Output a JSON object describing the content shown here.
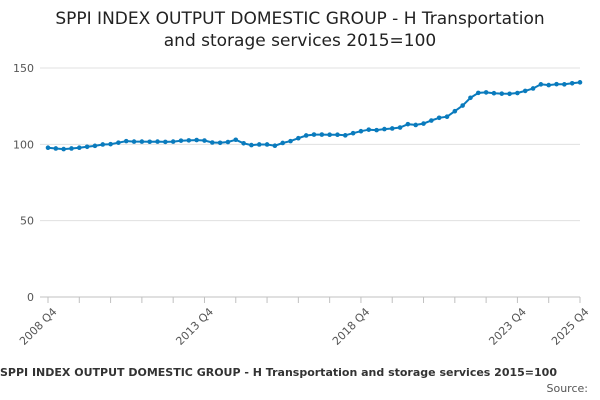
{
  "chart_data": {
    "type": "line",
    "title_lines": [
      "SPPI INDEX OUTPUT DOMESTIC GROUP - H Transportation",
      "and storage services 2015=100"
    ],
    "xlabel": "",
    "ylabel": "",
    "ylim": [
      0,
      150
    ],
    "yticks": [
      0,
      50,
      100,
      150
    ],
    "grid": true,
    "legend": "none",
    "x_tick_labels": [
      {
        "index": 0,
        "label": "2008 Q4"
      },
      {
        "index": 20,
        "label": "2013 Q4"
      },
      {
        "index": 40,
        "label": "2018 Q4"
      },
      {
        "index": 60,
        "label": "2023 Q4"
      },
      {
        "index": 68,
        "label": "2025 Q4"
      }
    ],
    "series": [
      {
        "color": "#0a7bbd",
        "values": [
          97.8,
          97.3,
          96.9,
          97.3,
          97.8,
          98.4,
          99.0,
          99.9,
          100.1,
          101.1,
          102.1,
          101.8,
          101.8,
          101.7,
          101.8,
          101.6,
          101.8,
          102.4,
          102.6,
          102.8,
          102.5,
          101.2,
          101.0,
          101.5,
          103.0,
          100.7,
          99.5,
          99.9,
          99.9,
          99.1,
          100.9,
          102.1,
          104.0,
          105.8,
          106.4,
          106.4,
          106.3,
          106.3,
          105.9,
          107.3,
          108.6,
          109.6,
          109.3,
          110.0,
          110.4,
          111.0,
          113.2,
          112.7,
          113.6,
          115.6,
          117.4,
          118.1,
          121.7,
          125.4,
          130.5,
          133.7,
          134.0,
          133.5,
          133.2,
          133.1,
          133.6,
          135.0,
          136.6,
          139.3,
          138.8,
          139.4,
          139.3,
          140.0,
          140.6
        ]
      }
    ]
  },
  "footer": {
    "caption": "SPPI INDEX OUTPUT DOMESTIC GROUP - H Transportation and storage services 2015=100",
    "source": "Source: "
  }
}
